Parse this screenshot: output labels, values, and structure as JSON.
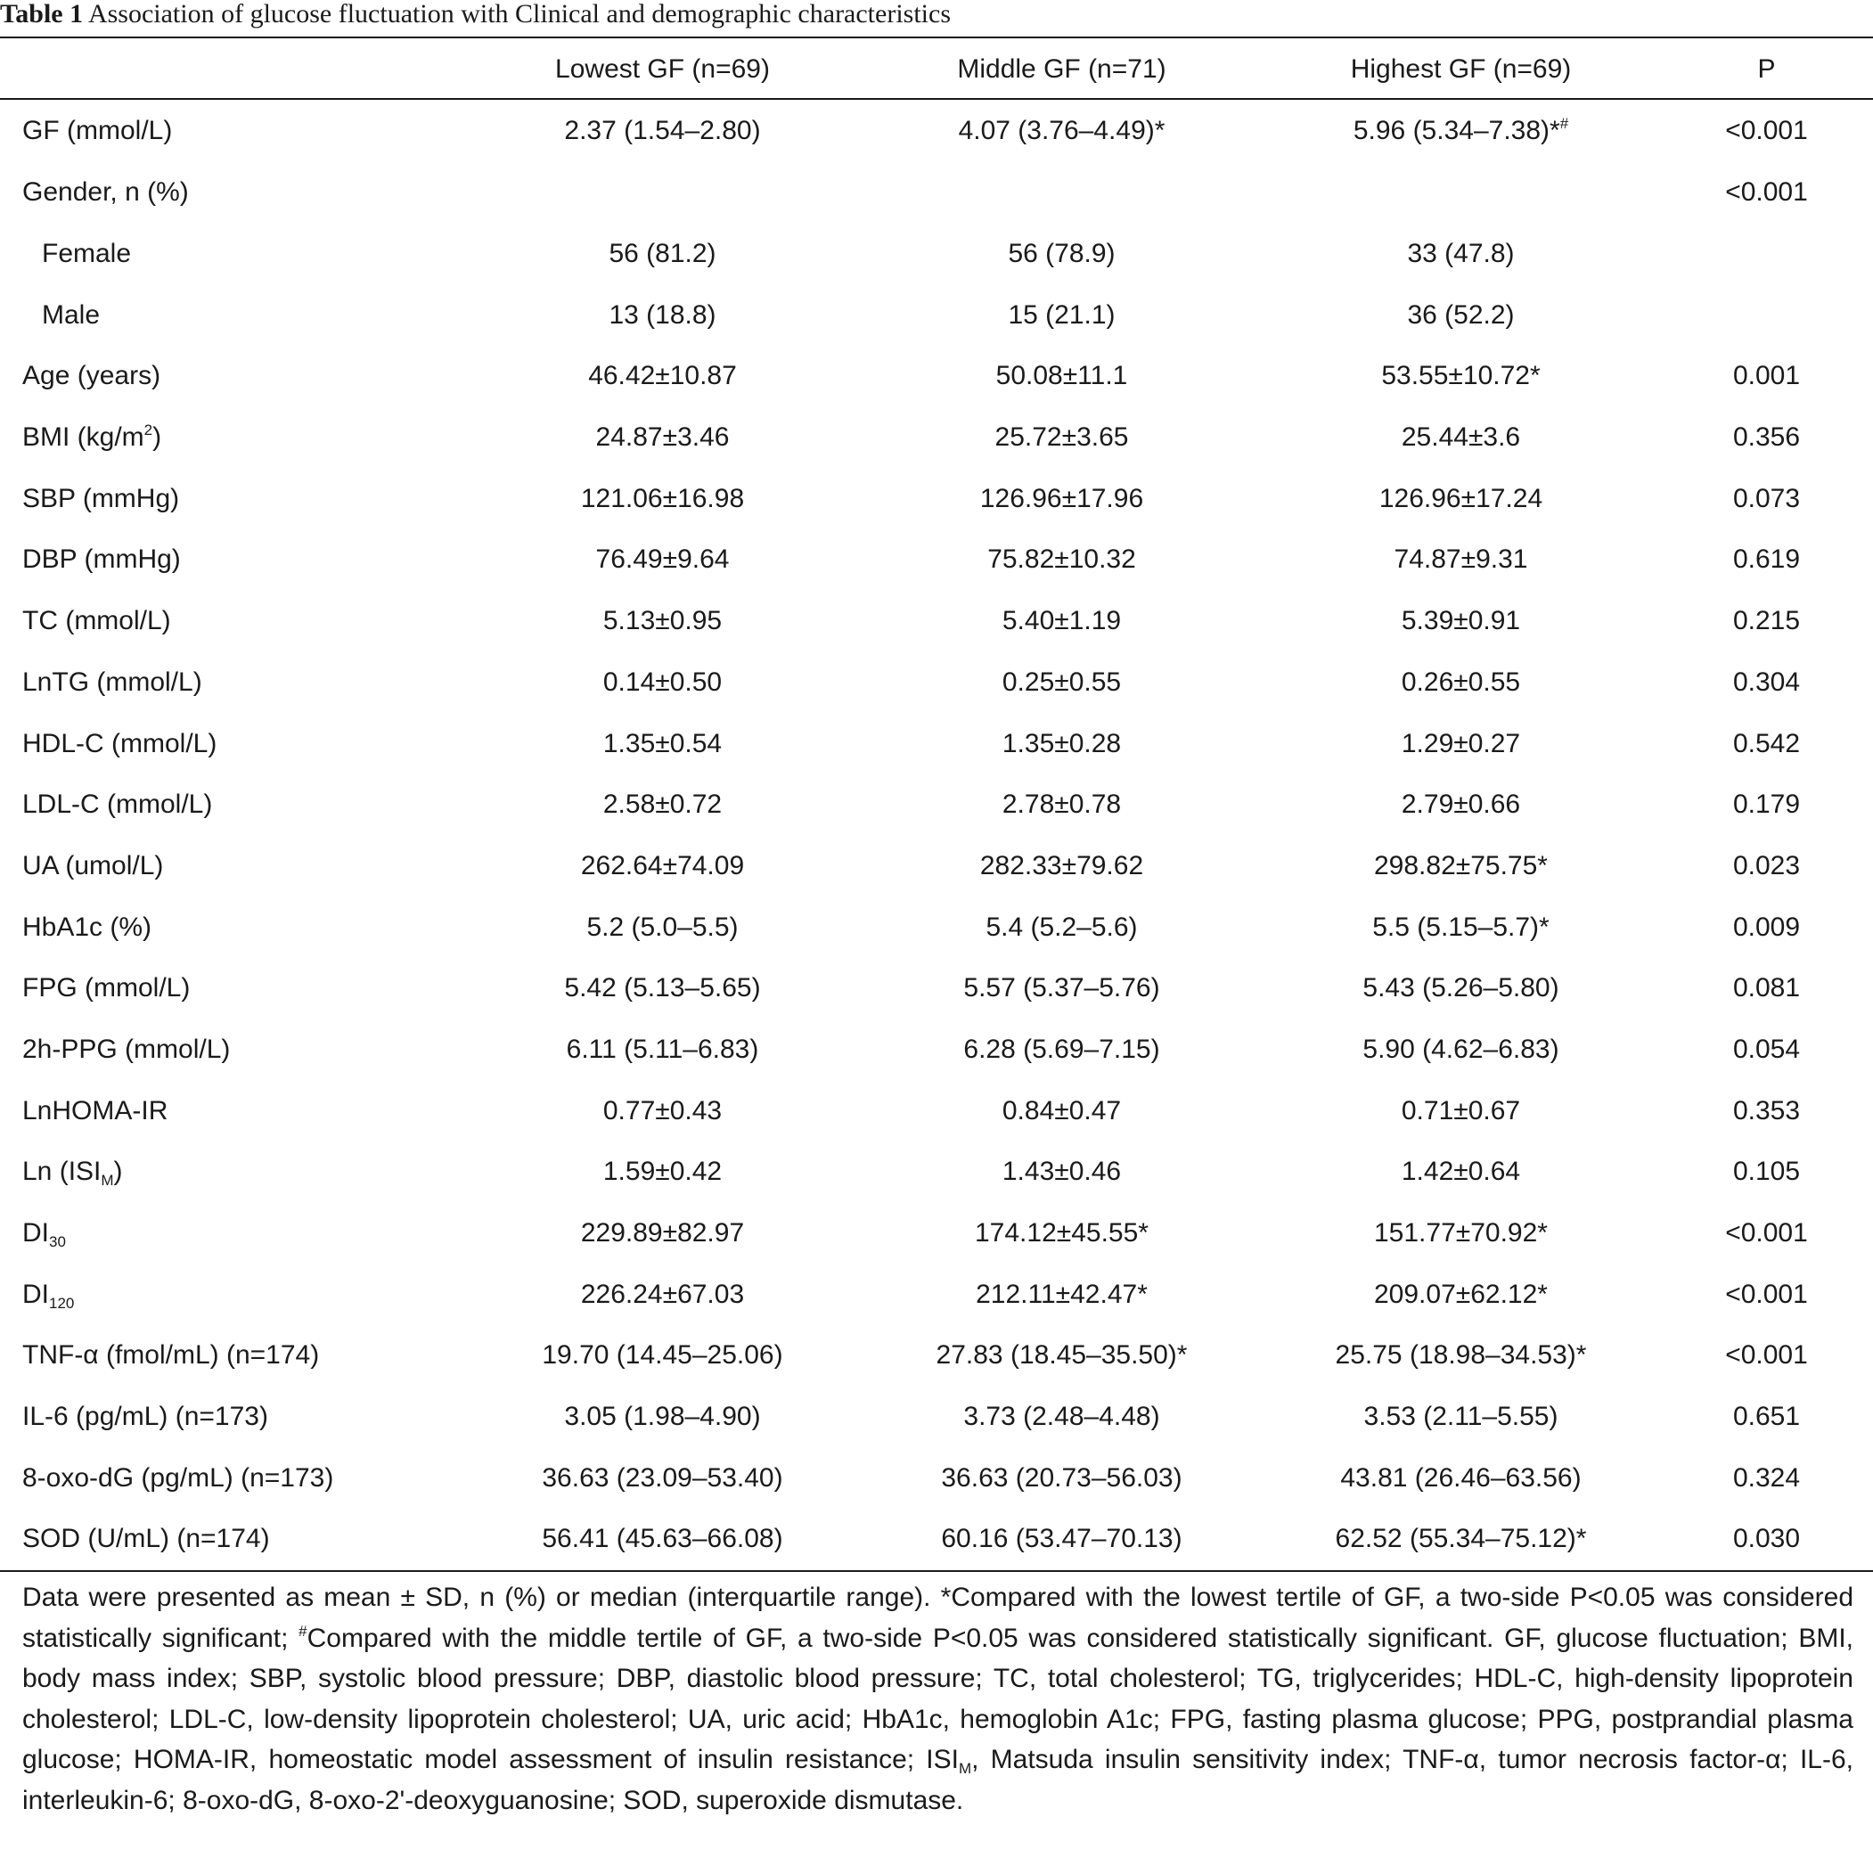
{
  "caption": {
    "label": "Table 1",
    "text": "Association of glucose fluctuation with Clinical and demographic characteristics"
  },
  "headers": [
    "",
    "Lowest GF (n=69)",
    "Middle GF (n=71)",
    "Highest GF (n=69)",
    "P"
  ],
  "rows": [
    {
      "label": "GF (mmol/L)",
      "low": "2.37 (1.54–2.80)",
      "mid": "4.07 (3.76–4.49)*",
      "high": "5.96 (5.34–7.38)*",
      "high_sup": "#",
      "p": "<0.001"
    },
    {
      "label": "Gender, n (%)",
      "low": "",
      "mid": "",
      "high": "",
      "p": "<0.001"
    },
    {
      "label": "Female",
      "indent": true,
      "low": "56 (81.2)",
      "mid": "56 (78.9)",
      "high": "33 (47.8)",
      "p": ""
    },
    {
      "label": "Male",
      "indent": true,
      "low": "13 (18.8)",
      "mid": "15 (21.1)",
      "high": "36 (52.2)",
      "p": ""
    },
    {
      "label": "Age (years)",
      "low": "46.42±10.87",
      "mid": "50.08±11.1",
      "high": "53.55±10.72*",
      "p": "0.001"
    },
    {
      "label": "BMI (kg/m",
      "label_sup": "2",
      "label_after": ")",
      "low": "24.87±3.46",
      "mid": "25.72±3.65",
      "high": "25.44±3.6",
      "p": "0.356"
    },
    {
      "label": "SBP (mmHg)",
      "low": "121.06±16.98",
      "mid": "126.96±17.96",
      "high": "126.96±17.24",
      "p": "0.073"
    },
    {
      "label": "DBP (mmHg)",
      "low": "76.49±9.64",
      "mid": "75.82±10.32",
      "high": "74.87±9.31",
      "p": "0.619"
    },
    {
      "label": "TC (mmol/L)",
      "low": "5.13±0.95",
      "mid": "5.40±1.19",
      "high": "5.39±0.91",
      "p": "0.215"
    },
    {
      "label": "LnTG (mmol/L)",
      "low": "0.14±0.50",
      "mid": "0.25±0.55",
      "high": "0.26±0.55",
      "p": "0.304"
    },
    {
      "label": "HDL-C (mmol/L)",
      "low": "1.35±0.54",
      "mid": "1.35±0.28",
      "high": "1.29±0.27",
      "p": "0.542"
    },
    {
      "label": "LDL-C (mmol/L)",
      "low": "2.58±0.72",
      "mid": "2.78±0.78",
      "high": "2.79±0.66",
      "p": "0.179"
    },
    {
      "label": "UA (umol/L)",
      "low": "262.64±74.09",
      "mid": "282.33±79.62",
      "high": "298.82±75.75*",
      "p": "0.023"
    },
    {
      "label": "HbA1c (%)",
      "low": "5.2 (5.0–5.5)",
      "mid": "5.4 (5.2–5.6)",
      "high": "5.5 (5.15–5.7)*",
      "p": "0.009"
    },
    {
      "label": "FPG (mmol/L)",
      "low": "5.42 (5.13–5.65)",
      "mid": "5.57 (5.37–5.76)",
      "high": "5.43 (5.26–5.80)",
      "p": "0.081"
    },
    {
      "label": "2h-PPG (mmol/L)",
      "low": "6.11 (5.11–6.83)",
      "mid": "6.28 (5.69–7.15)",
      "high": "5.90 (4.62–6.83)",
      "p": "0.054"
    },
    {
      "label": "LnHOMA-IR",
      "low": "0.77±0.43",
      "mid": "0.84±0.47",
      "high": "0.71±0.67",
      "p": "0.353"
    },
    {
      "label": "Ln (ISI",
      "label_sub": "M",
      "label_after": ")",
      "low": "1.59±0.42",
      "mid": "1.43±0.46",
      "high": "1.42±0.64",
      "p": "0.105"
    },
    {
      "label": "DI",
      "label_sub": "30",
      "low": "229.89±82.97",
      "mid": "174.12±45.55*",
      "high": "151.77±70.92*",
      "p": "<0.001"
    },
    {
      "label": "DI",
      "label_sub": "120",
      "low": "226.24±67.03",
      "mid": "212.11±42.47*",
      "high": "209.07±62.12*",
      "p": "<0.001"
    },
    {
      "label": "TNF-α (fmol/mL) (n=174)",
      "low": "19.70 (14.45–25.06)",
      "mid": "27.83 (18.45–35.50)*",
      "high": "25.75 (18.98–34.53)*",
      "p": "<0.001"
    },
    {
      "label": "IL-6 (pg/mL) (n=173)",
      "low": "3.05 (1.98–4.90)",
      "mid": "3.73 (2.48–4.48)",
      "high": "3.53 (2.11–5.55)",
      "p": "0.651"
    },
    {
      "label": "8-oxo-dG (pg/mL) (n=173)",
      "low": "36.63 (23.09–53.40)",
      "mid": "36.63 (20.73–56.03)",
      "high": "43.81 (26.46–63.56)",
      "p": "0.324"
    },
    {
      "label": "SOD (U/mL) (n=174)",
      "low": "56.41 (45.63–66.08)",
      "mid": "60.16 (53.47–70.13)",
      "high": "62.52 (55.34–75.12)*",
      "p": "0.030"
    }
  ],
  "footnote": {
    "part1": "Data were presented as mean ± SD, n (%) or median (interquartile range). *Compared with the lowest tertile of GF, a two-side P<0.05 was considered statistically significant; ",
    "sup": "#",
    "part2": "Compared with the middle tertile of GF, a two-side P<0.05 was considered statistically significant. GF, glucose fluctuation; BMI, body mass index; SBP, systolic blood pressure; DBP, diastolic blood pressure; TC, total cholesterol; TG, triglycerides; HDL-C, high-density lipoprotein cholesterol; LDL-C, low-density lipoprotein cholesterol; UA, uric acid; HbA1c, hemoglobin A1c; FPG, fasting plasma glucose; PPG, postprandial plasma glucose; HOMA-IR, homeostatic model assessment of insulin resistance; ISI",
    "sub": "M",
    "part3": ", Matsuda insulin sensitivity index; TNF-α, tumor necrosis factor-α; IL-6, interleukin-6; 8-oxo-dG, 8-oxo-2'-deoxyguanosine; SOD, superoxide dismutase."
  }
}
